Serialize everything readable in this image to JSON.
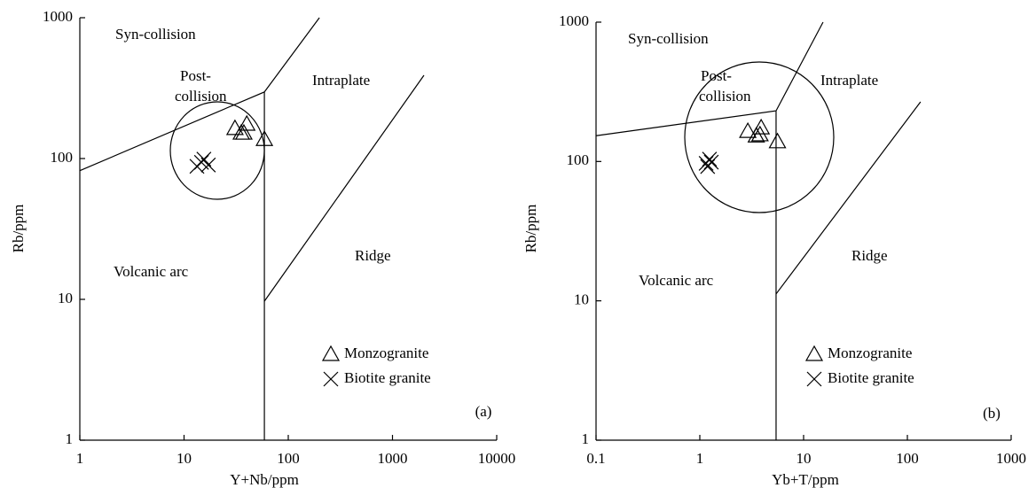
{
  "chart_data": [
    {
      "type": "scatter",
      "xlabel": "Y+Nb/ppm",
      "ylabel": "Rb/ppm",
      "panel_label": "(a)",
      "xscale": "log",
      "yscale": "log",
      "xlim": [
        1,
        10000
      ],
      "ylim": [
        1,
        1000
      ],
      "xticks": [
        1,
        10,
        100,
        1000,
        10000
      ],
      "yticks": [
        1,
        10,
        100,
        1000
      ],
      "annotations": [
        "Syn-collision",
        "Post-",
        "collision",
        "Intraplate",
        "Volcanic arc",
        "Ridge"
      ],
      "boundaries": [
        {
          "x": [
            1,
            59,
            199
          ],
          "y": [
            82,
            297,
            1000
          ]
        },
        {
          "x": [
            59,
            59
          ],
          "y": [
            297,
            1
          ]
        },
        {
          "x": [
            59,
            2004
          ],
          "y": [
            9.7,
            390
          ]
        }
      ],
      "series": [
        {
          "name": "Monzogranite",
          "marker": "triangle",
          "color": "#000000",
          "x": [
            30.8,
            40,
            35.4,
            37.5,
            59
          ],
          "y": [
            164,
            176,
            152,
            152,
            137
          ]
        },
        {
          "name": "Biotite granite",
          "marker": "cross",
          "color": "#000000",
          "x": [
            13.3,
            15.5,
            17.1,
            14.7
          ],
          "y": [
            88,
            99,
            90,
            94
          ]
        }
      ]
    },
    {
      "type": "scatter",
      "xlabel": "Yb+T/ppm",
      "ylabel": "Rb/ppm",
      "panel_label": "(b)",
      "xscale": "log",
      "yscale": "log",
      "xlim": [
        0.1,
        1000
      ],
      "ylim": [
        1,
        1000
      ],
      "xticks": [
        0.1,
        1,
        10,
        100,
        1000
      ],
      "yticks": [
        1,
        10,
        100,
        1000
      ],
      "annotations": [
        "Syn-collision",
        "Post-",
        "collision",
        "Intraplate",
        "Volcanic arc",
        "Ridge"
      ],
      "boundaries": [
        {
          "x": [
            0.1,
            5.43,
            15.4
          ],
          "y": [
            153,
            231,
            1000
          ]
        },
        {
          "x": [
            5.43,
            5.43
          ],
          "y": [
            231,
            1
          ]
        },
        {
          "x": [
            5.43,
            134
          ],
          "y": [
            11.2,
            268
          ]
        }
      ],
      "series": [
        {
          "name": "Monzogranite",
          "marker": "triangle",
          "color": "#000000",
          "x": [
            2.9,
            3.9,
            3.5,
            3.8,
            5.6
          ],
          "y": [
            165,
            175,
            153,
            156,
            139
          ]
        },
        {
          "name": "Biotite granite",
          "marker": "cross",
          "color": "#000000",
          "x": [
            1.15,
            1.24,
            1.19,
            1.29
          ],
          "y": [
            97,
            104,
            92,
            99
          ]
        }
      ]
    }
  ]
}
